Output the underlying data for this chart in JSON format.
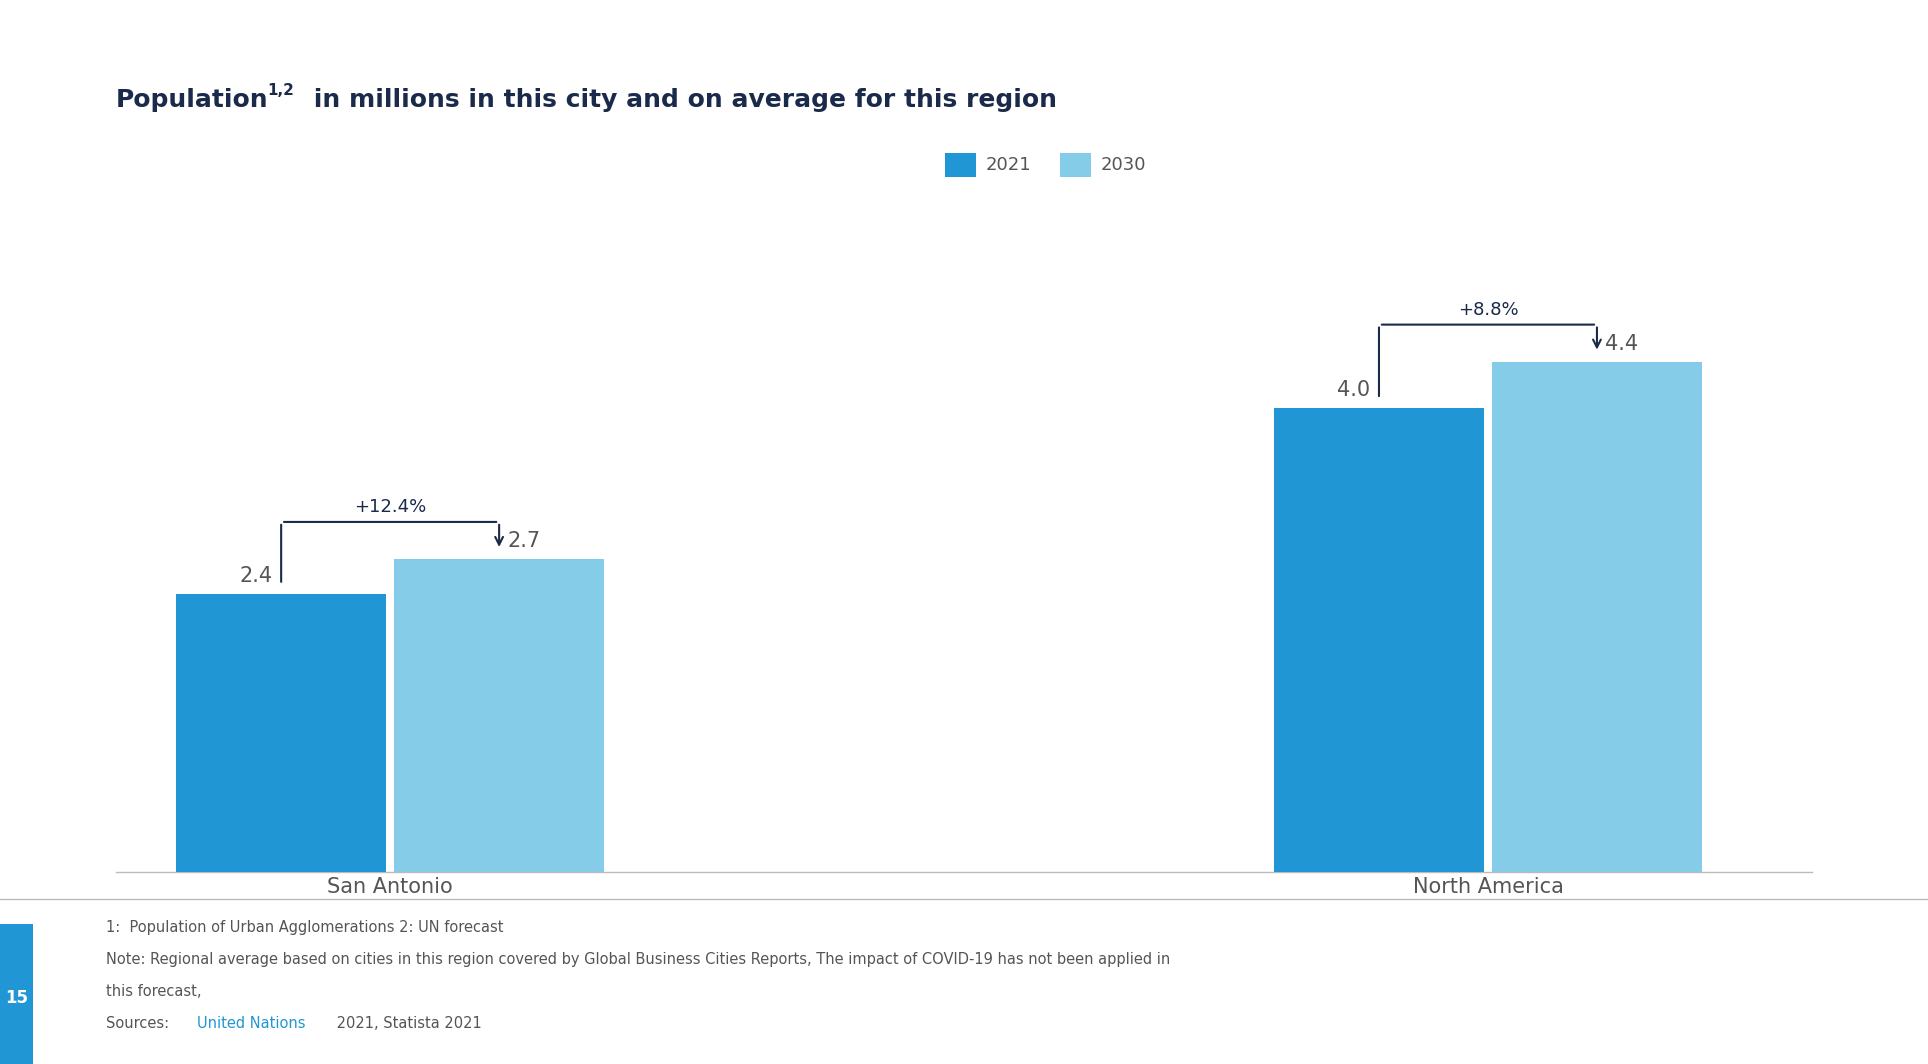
{
  "categories": [
    "San Antonio",
    "North America"
  ],
  "values_2021": [
    2.4,
    4.0
  ],
  "values_2030": [
    2.7,
    4.4
  ],
  "growth_pct": [
    "+12.4%",
    "+8.8%"
  ],
  "color_2021": "#2196d4",
  "color_2030": "#85cce8",
  "legend_2021": "2021",
  "legend_2030": "2030",
  "ylim": [
    0,
    5.5
  ],
  "background_color": "#ffffff",
  "title_color": "#1a2a4a",
  "axis_color": "#bbbbbb",
  "label_color": "#555555",
  "arrow_color": "#1a2a4a",
  "footnote_line1": "1:  Population of Urban Agglomerations 2: UN forecast",
  "footnote_line2": "Note: Regional average based on cities in this region covered by Global Business Cities Reports, The impact of COVID-19 has not been applied in",
  "footnote_line3": "this forecast,",
  "page_number": "15",
  "accent_color": "#2196d4",
  "title_main": "Population",
  "title_super": "1,2",
  "title_rest": " in millions in this city and on average for this region"
}
